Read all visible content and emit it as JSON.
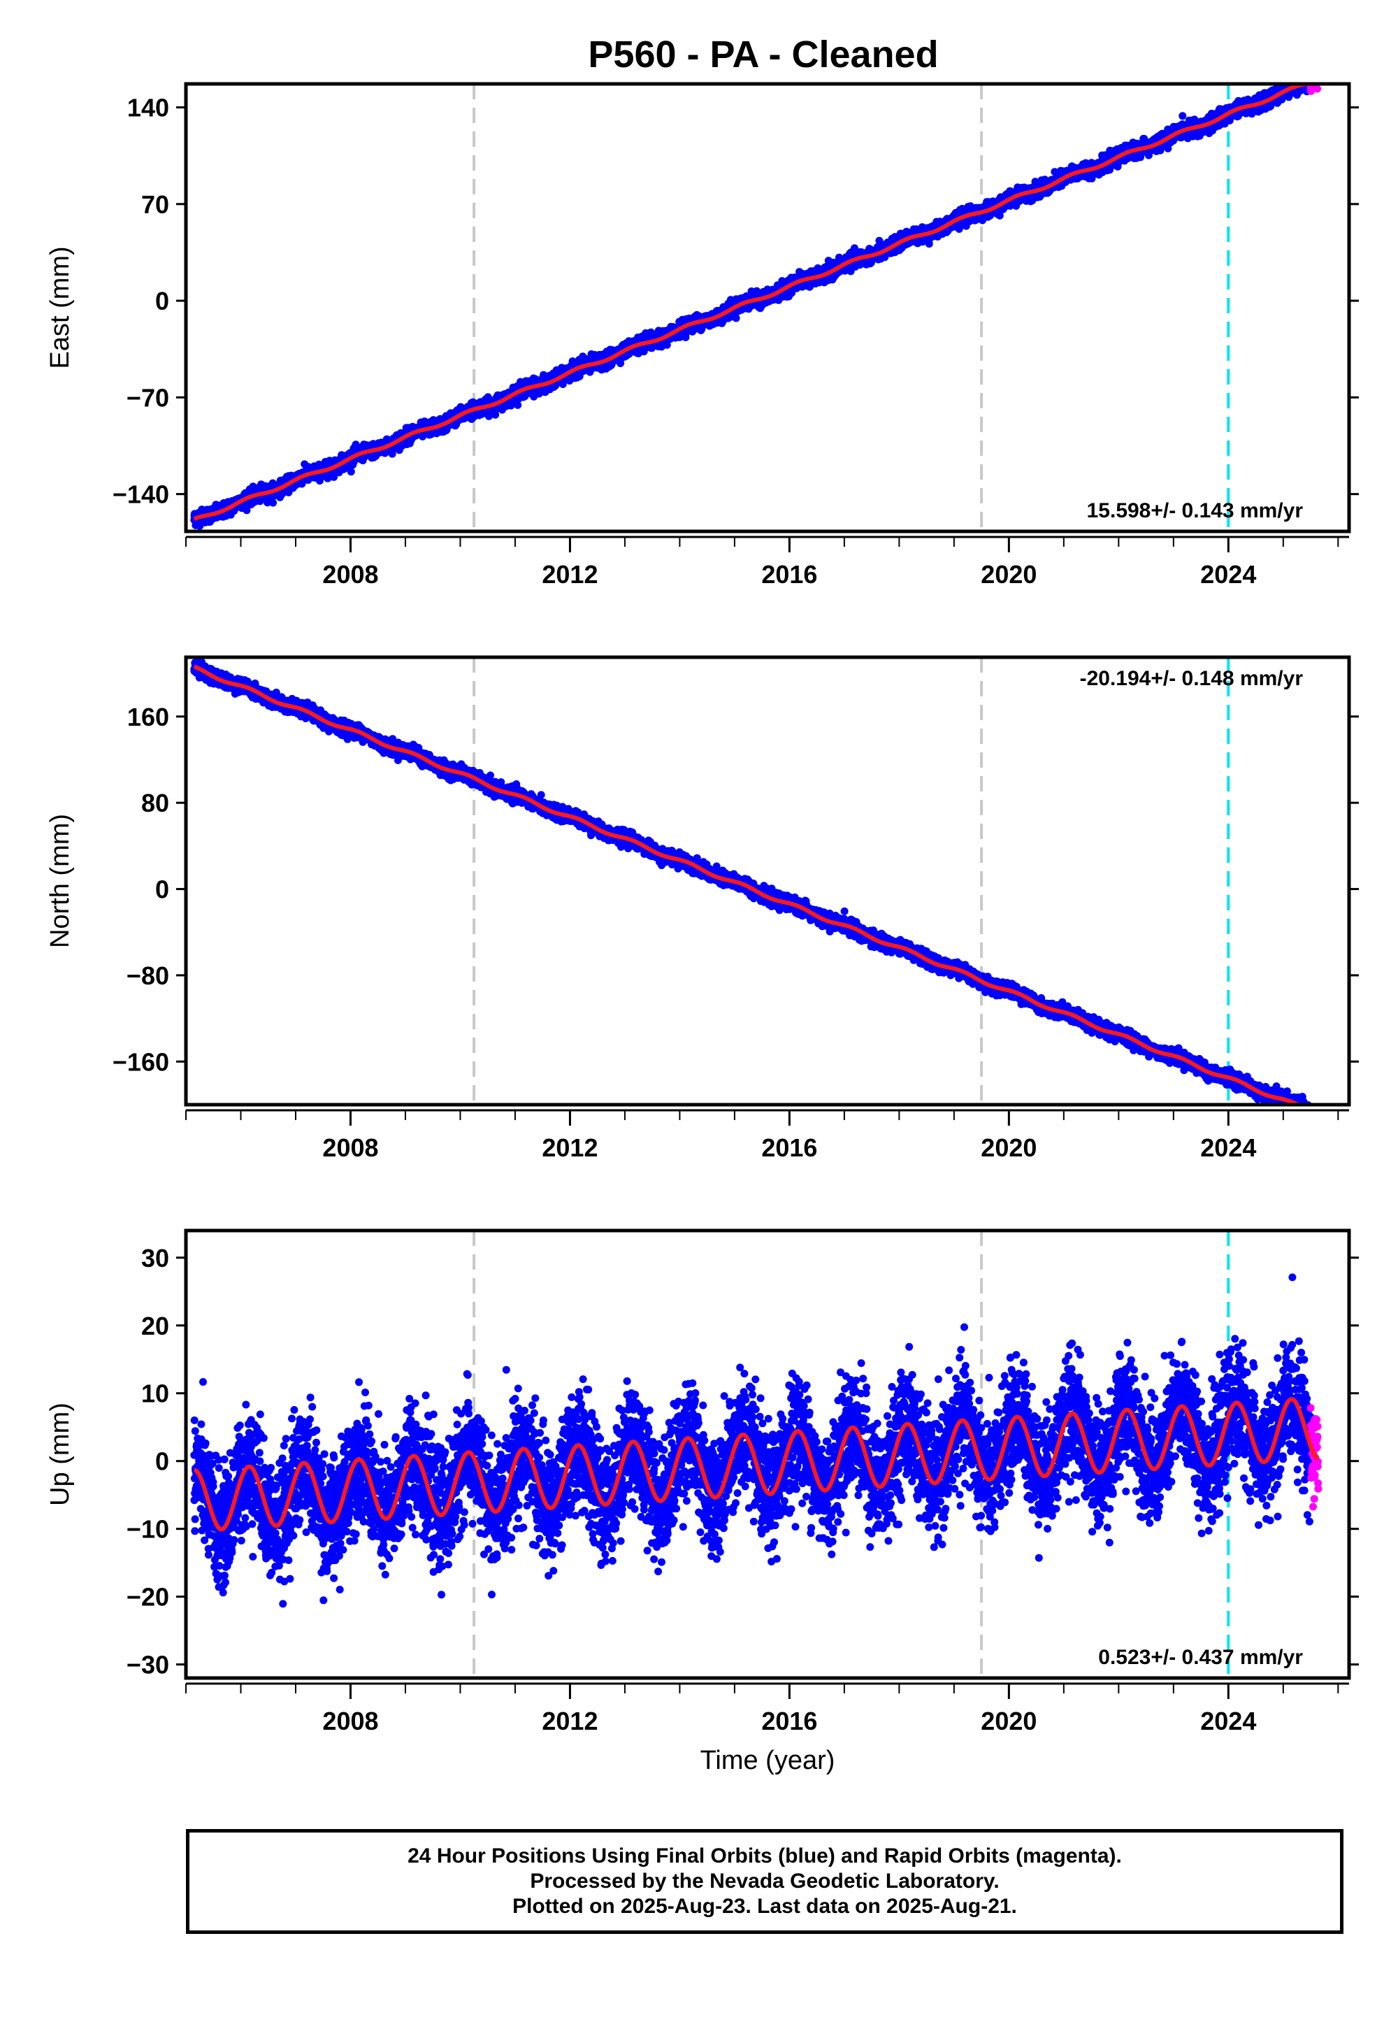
{
  "title": "P560  - PA - Cleaned",
  "colors": {
    "final": "#0000ff",
    "rapid": "#ff00ff",
    "model": "#ff1a1a",
    "event_gray": "#c8c8c8",
    "event_cyan": "#00e5ee"
  },
  "chart_data": [
    {
      "type": "scatter",
      "ylabel": "East (mm)",
      "xlabel": "",
      "xlim": [
        2005.0,
        2026.2
      ],
      "ylim": [
        -167,
        157
      ],
      "yticks": [
        -140,
        -70,
        0,
        70,
        140
      ],
      "xticks": [
        2008,
        2012,
        2016,
        2020,
        2024
      ],
      "rate_text": "15.598+/- 0.143 mm/yr",
      "rate_position": "bottom-right",
      "trend": {
        "t0": 2015.35,
        "y0": 0,
        "rate": 15.6,
        "amp": 1.2,
        "noise": 2.5,
        "start": 2005.15,
        "end": 2025.64
      },
      "rapid_start": 2025.5,
      "event_lines": [
        {
          "x": 2010.25,
          "color": "gray"
        },
        {
          "x": 2019.5,
          "color": "gray"
        },
        {
          "x": 2024.0,
          "color": "cyan"
        }
      ]
    },
    {
      "type": "scatter",
      "ylabel": "North (mm)",
      "xlabel": "",
      "xlim": [
        2005.0,
        2026.2
      ],
      "ylim": [
        -200,
        215
      ],
      "yticks": [
        -160,
        -80,
        0,
        80,
        160
      ],
      "xticks": [
        2008,
        2012,
        2016,
        2020,
        2024
      ],
      "rate_text": "-20.194+/- 0.148 mm/yr",
      "rate_position": "top-right",
      "trend": {
        "t0": 2015.3,
        "y0": 0,
        "rate": -20.19,
        "amp": 1.5,
        "noise": 3.0,
        "start": 2005.15,
        "end": 2025.64
      },
      "rapid_start": 2025.5,
      "event_lines": [
        {
          "x": 2010.25,
          "color": "gray"
        },
        {
          "x": 2019.5,
          "color": "gray"
        },
        {
          "x": 2024.0,
          "color": "cyan"
        }
      ]
    },
    {
      "type": "scatter",
      "ylabel": "Up (mm)",
      "xlabel": "Time (year)",
      "xlim": [
        2005.0,
        2026.2
      ],
      "ylim": [
        -32,
        34
      ],
      "yticks": [
        -30,
        -20,
        -10,
        0,
        10,
        20,
        30
      ],
      "xticks": [
        2008,
        2012,
        2016,
        2020,
        2024
      ],
      "rate_text": "0.523+/- 0.437 mm/yr",
      "rate_position": "bottom-right",
      "trend": {
        "t0": 2015.35,
        "y0": -0.5,
        "rate": 0.523,
        "amp": 4.5,
        "noise": 4.2,
        "start": 2005.15,
        "end": 2025.64
      },
      "rapid_start": 2025.5,
      "event_lines": [
        {
          "x": 2010.25,
          "color": "gray"
        },
        {
          "x": 2019.5,
          "color": "gray"
        },
        {
          "x": 2024.0,
          "color": "cyan"
        }
      ]
    }
  ],
  "footer": {
    "line1": "24 Hour Positions Using Final Orbits (blue) and Rapid Orbits (magenta).",
    "line2": "Processed by the Nevada Geodetic Laboratory.",
    "line3": "Plotted on 2025-Aug-23. Last data on 2025-Aug-21."
  }
}
